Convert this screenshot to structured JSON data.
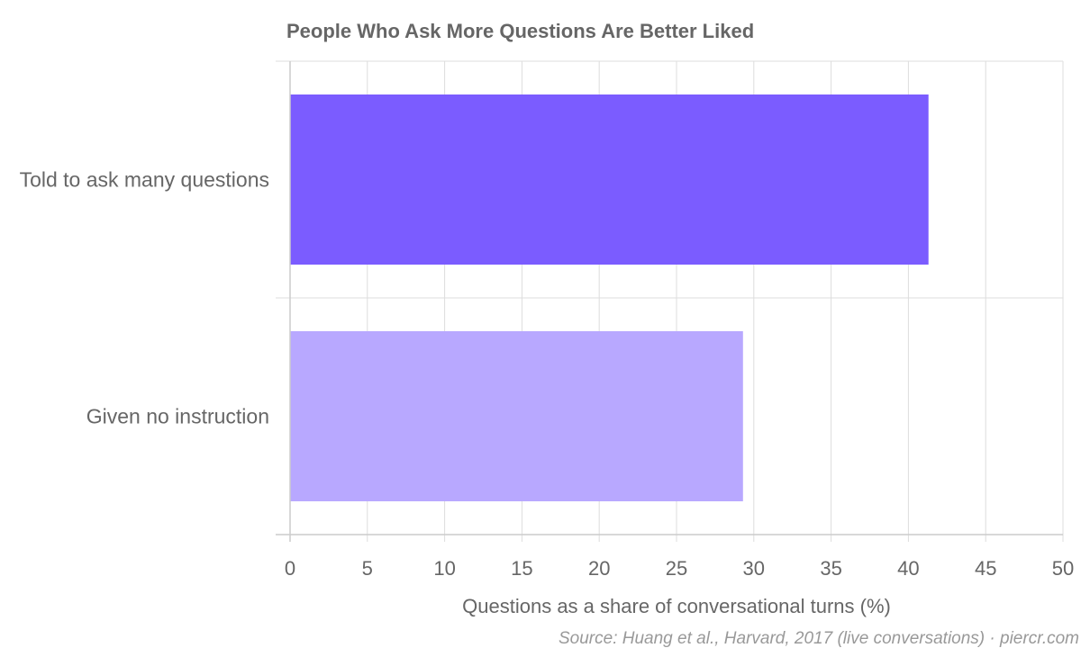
{
  "chart_data": {
    "type": "bar",
    "orientation": "horizontal",
    "title": "People Who Ask More Questions Are Better Liked",
    "categories": [
      "Told to ask many questions",
      "Given no instruction"
    ],
    "values": [
      41.3,
      29.3
    ],
    "colors": [
      "#7b5cff",
      "#b8a8ff"
    ],
    "xlabel": "Questions as a share of conversational turns (%)",
    "ylabel": "",
    "xlim": [
      0,
      50
    ],
    "xticks": [
      0,
      5,
      10,
      15,
      20,
      25,
      30,
      35,
      40,
      45,
      50
    ],
    "grid": true,
    "source": "Source: Huang et al., Harvard, 2017 (live conversations) · piercr.com"
  }
}
